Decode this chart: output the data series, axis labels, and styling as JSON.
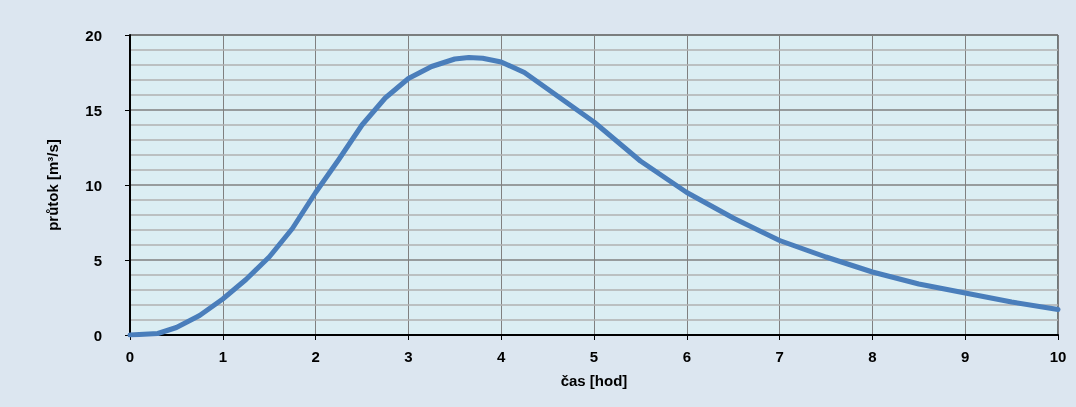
{
  "chart_data": {
    "type": "line",
    "xlabel": "čas [hod]",
    "ylabel": "průtok [m³/s]",
    "x": [
      0,
      0.3,
      0.5,
      0.75,
      1,
      1.25,
      1.5,
      1.75,
      2,
      2.25,
      2.5,
      2.75,
      3,
      3.25,
      3.5,
      3.65,
      3.8,
      4,
      4.25,
      4.5,
      4.75,
      5,
      5.5,
      6,
      6.5,
      7,
      7.5,
      8,
      8.5,
      9,
      9.5,
      10
    ],
    "series": [
      {
        "color": "#4a7ebb",
        "values": [
          0,
          0.1,
          0.5,
          1.3,
          2.4,
          3.7,
          5.2,
          7.1,
          9.5,
          11.7,
          14.0,
          15.8,
          17.1,
          17.9,
          18.4,
          18.5,
          18.45,
          18.2,
          17.5,
          16.4,
          15.3,
          14.2,
          11.6,
          9.5,
          7.8,
          6.3,
          5.2,
          4.2,
          3.4,
          2.8,
          2.2,
          1.7
        ]
      }
    ],
    "xlim": [
      0,
      10
    ],
    "xticks": [
      0,
      1,
      2,
      3,
      4,
      5,
      6,
      7,
      8,
      9,
      10
    ],
    "ylim": [
      0,
      20
    ],
    "yticks": [
      0,
      {
        "value": 1,
        "label": null
      },
      {
        "value": 2,
        "label": null
      },
      {
        "value": 3,
        "label": null
      },
      {
        "value": 4,
        "label": null
      },
      5,
      {
        "value": 6,
        "label": null
      },
      {
        "value": 7,
        "label": null
      },
      {
        "value": 8,
        "label": null
      },
      {
        "value": 9,
        "label": null
      },
      10,
      {
        "value": 11,
        "label": null
      },
      {
        "value": 12,
        "label": null
      },
      {
        "value": 13,
        "label": null
      },
      {
        "value": 14,
        "label": null
      },
      15,
      {
        "value": 16,
        "label": null
      },
      {
        "value": 17,
        "label": null
      },
      {
        "value": 18,
        "label": null
      },
      {
        "value": 19,
        "label": null
      },
      20
    ],
    "grid": true,
    "marker": "none",
    "line_style": "solid"
  }
}
